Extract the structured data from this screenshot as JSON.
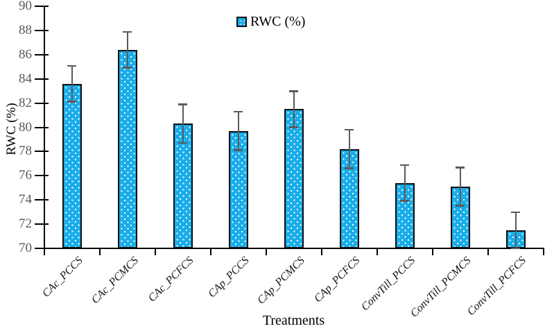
{
  "chart_data": {
    "type": "bar",
    "title": "",
    "legend": "RWC (%)",
    "legend_position": "top-center",
    "xlabel": "Treatments",
    "ylabel": "RWC (%)",
    "ylim": [
      70,
      90
    ],
    "ytick_step": 2,
    "grid": false,
    "categories": [
      "CAc_PCCS",
      "CAc_PCMCS",
      "CAc_PCFCS",
      "CAp_PCCS",
      "CAp_PCMCS",
      "CAp_PCFCS",
      "ConvTill_PCCS",
      "ConvTill_PCMCS",
      "ConvTill_PCFCS"
    ],
    "series": [
      {
        "name": "RWC (%)",
        "values": [
          83.6,
          86.4,
          80.3,
          79.7,
          81.5,
          78.2,
          75.4,
          75.1,
          71.5
        ],
        "error_bars": [
          1.5,
          1.5,
          1.6,
          1.6,
          1.5,
          1.6,
          1.5,
          1.6,
          1.5
        ]
      }
    ],
    "colors": {
      "bar_fill": "#19ade9",
      "bar_border": "#0f0f0f",
      "error_bar": "#5a5a5a",
      "tick_label": "#595959",
      "axis": "#000000"
    }
  }
}
